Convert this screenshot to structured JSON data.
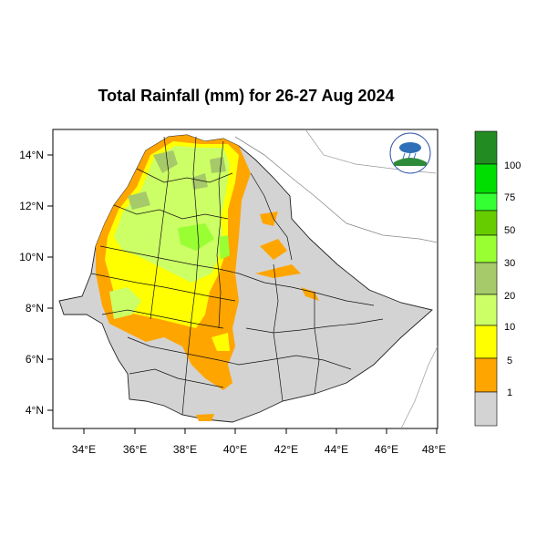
{
  "title": "Total Rainfall (mm) for 26-27 Aug 2024",
  "map": {
    "lon_ticks": [
      "34°E",
      "36°E",
      "38°E",
      "40°E",
      "42°E",
      "44°E",
      "46°E",
      "48°E"
    ],
    "lat_ticks": [
      "14°N",
      "12°N",
      "10°N",
      "8°N",
      "6°N",
      "4°N"
    ]
  },
  "legend": {
    "labels": [
      "100",
      "75",
      "50",
      "30",
      "20",
      "10",
      "5",
      "1"
    ],
    "colors": [
      "#228b22",
      "#00dd00",
      "#33ff33",
      "#66cc00",
      "#99ff33",
      "#a6c96a",
      "#ccff66",
      "#ffff00",
      "#ffa500",
      "#d3d3d3"
    ]
  },
  "logo": {
    "icon": "meteorology-institute-logo"
  }
}
